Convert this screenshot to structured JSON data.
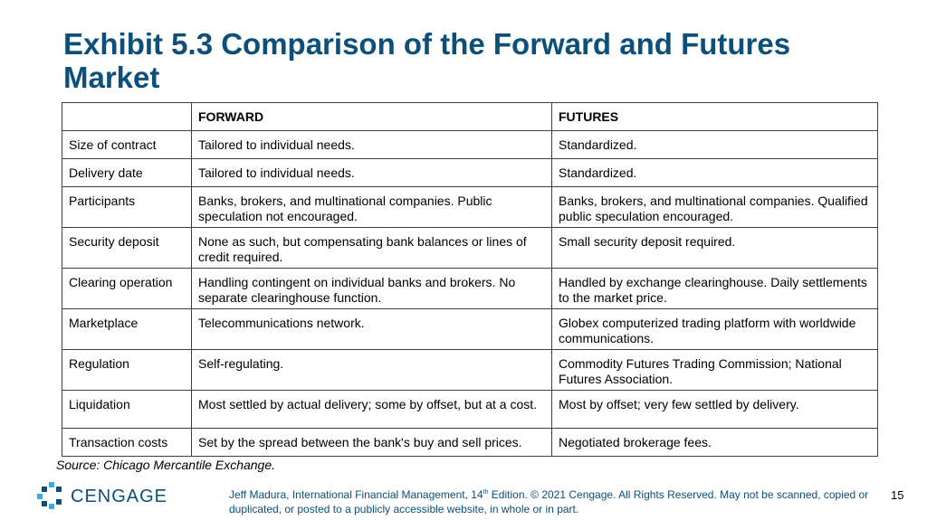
{
  "title": "Exhibit 5.3 Comparison of the Forward and Futures Market",
  "table": {
    "headers": [
      "",
      "FORWARD",
      "FUTURES"
    ],
    "rows": [
      [
        "Size of contract",
        "Tailored to individual needs.",
        "Standardized."
      ],
      [
        "Delivery date",
        "Tailored to individual needs.",
        "Standardized."
      ],
      [
        "Participants",
        "Banks, brokers, and multinational companies. Public speculation not encouraged.",
        "Banks, brokers, and multinational companies. Qualified public speculation encouraged."
      ],
      [
        "Security deposit",
        "None as such, but compensating bank balances or lines of credit required.",
        "Small security deposit required."
      ],
      [
        "Clearing operation",
        "Handling contingent on individual banks and brokers. No separate clearinghouse function.",
        "Handled by exchange clearinghouse. Daily settlements to the market price."
      ],
      [
        "Marketplace",
        "Telecommunications network.",
        "Globex computerized trading platform with worldwide communications."
      ],
      [
        "Regulation",
        "Self-regulating.",
        "Commodity Futures Trading Commission; National Futures Association."
      ],
      [
        "Liquidation",
        "Most settled by actual delivery; some by offset, but at a cost.",
        "Most by offset; very few settled by delivery."
      ],
      [
        "Transaction costs",
        "Set by the spread between the bank's buy and sell prices.",
        "Negotiated brokerage fees."
      ]
    ]
  },
  "source": "Source: Chicago Mercantile Exchange.",
  "footer": {
    "logo_text": "CENGAGE",
    "copyright_pre": "Jeff Madura, International Financial Management, 14",
    "copyright_sup": "th",
    "copyright_post": " Edition. © 2021 Cengage. All Rights Reserved. May not be scanned, copied or duplicated, or posted to a publicly accessible website, in whole or in part.",
    "page_number": "15"
  },
  "colors": {
    "title": "#0b4f7a",
    "logo_blue": "#0b4f7a",
    "logo_light": "#3fa9e0"
  },
  "icons": [
    "cengage-logo-icon"
  ]
}
